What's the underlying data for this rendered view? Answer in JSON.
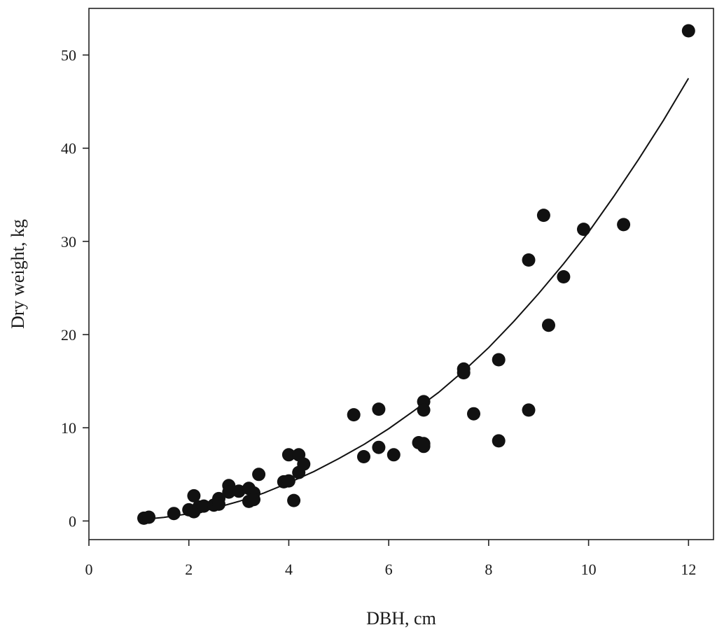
{
  "chart_data": {
    "type": "scatter",
    "title": "",
    "xlabel": "DBH, cm",
    "ylabel": "Dry weight, kg",
    "xlim": [
      0,
      12.5
    ],
    "ylim": [
      -2,
      55
    ],
    "xticks": [
      0,
      2,
      4,
      6,
      8,
      10,
      12
    ],
    "yticks": [
      0,
      10,
      20,
      30,
      40,
      50
    ],
    "grid": false,
    "legend": "none",
    "colors": {
      "points": "#111111",
      "curve": "#111111",
      "axes": "#222222"
    },
    "points": [
      [
        1.1,
        0.3
      ],
      [
        1.2,
        0.4
      ],
      [
        1.7,
        0.8
      ],
      [
        2.0,
        1.2
      ],
      [
        2.1,
        2.7
      ],
      [
        2.1,
        1.0
      ],
      [
        2.2,
        1.5
      ],
      [
        2.3,
        1.6
      ],
      [
        2.5,
        1.7
      ],
      [
        2.6,
        2.4
      ],
      [
        2.6,
        1.8
      ],
      [
        2.8,
        3.8
      ],
      [
        2.8,
        3.1
      ],
      [
        3.0,
        3.2
      ],
      [
        3.2,
        3.5
      ],
      [
        3.2,
        2.1
      ],
      [
        3.3,
        3.0
      ],
      [
        3.3,
        2.3
      ],
      [
        3.4,
        5.0
      ],
      [
        3.9,
        4.2
      ],
      [
        4.0,
        7.1
      ],
      [
        4.0,
        4.3
      ],
      [
        4.1,
        2.2
      ],
      [
        4.2,
        7.1
      ],
      [
        4.2,
        5.2
      ],
      [
        4.3,
        6.1
      ],
      [
        5.3,
        11.4
      ],
      [
        5.5,
        6.9
      ],
      [
        5.8,
        12.0
      ],
      [
        5.8,
        7.9
      ],
      [
        6.1,
        7.1
      ],
      [
        6.6,
        8.4
      ],
      [
        6.7,
        12.8
      ],
      [
        6.7,
        11.9
      ],
      [
        6.7,
        8.3
      ],
      [
        6.7,
        8.0
      ],
      [
        7.5,
        16.3
      ],
      [
        7.5,
        15.9
      ],
      [
        7.7,
        11.5
      ],
      [
        8.2,
        17.3
      ],
      [
        8.2,
        8.6
      ],
      [
        8.8,
        28.0
      ],
      [
        8.8,
        11.9
      ],
      [
        9.1,
        32.8
      ],
      [
        9.2,
        21.0
      ],
      [
        9.5,
        26.2
      ],
      [
        9.9,
        31.3
      ],
      [
        10.7,
        31.8
      ],
      [
        12.0,
        52.6
      ]
    ],
    "fit_curve": {
      "x": [
        1.1,
        1.5,
        2.0,
        2.5,
        3.0,
        3.5,
        4.0,
        4.5,
        5.0,
        5.5,
        6.0,
        6.5,
        7.0,
        7.5,
        8.0,
        8.5,
        9.0,
        9.5,
        10.0,
        10.5,
        11.0,
        11.5,
        12.0
      ],
      "y": [
        0.18,
        0.38,
        0.78,
        1.35,
        2.1,
        3.0,
        4.1,
        5.3,
        6.7,
        8.2,
        9.9,
        11.8,
        13.8,
        16.1,
        18.6,
        21.4,
        24.4,
        27.6,
        31.0,
        34.8,
        38.8,
        43.0,
        47.5
      ]
    }
  }
}
